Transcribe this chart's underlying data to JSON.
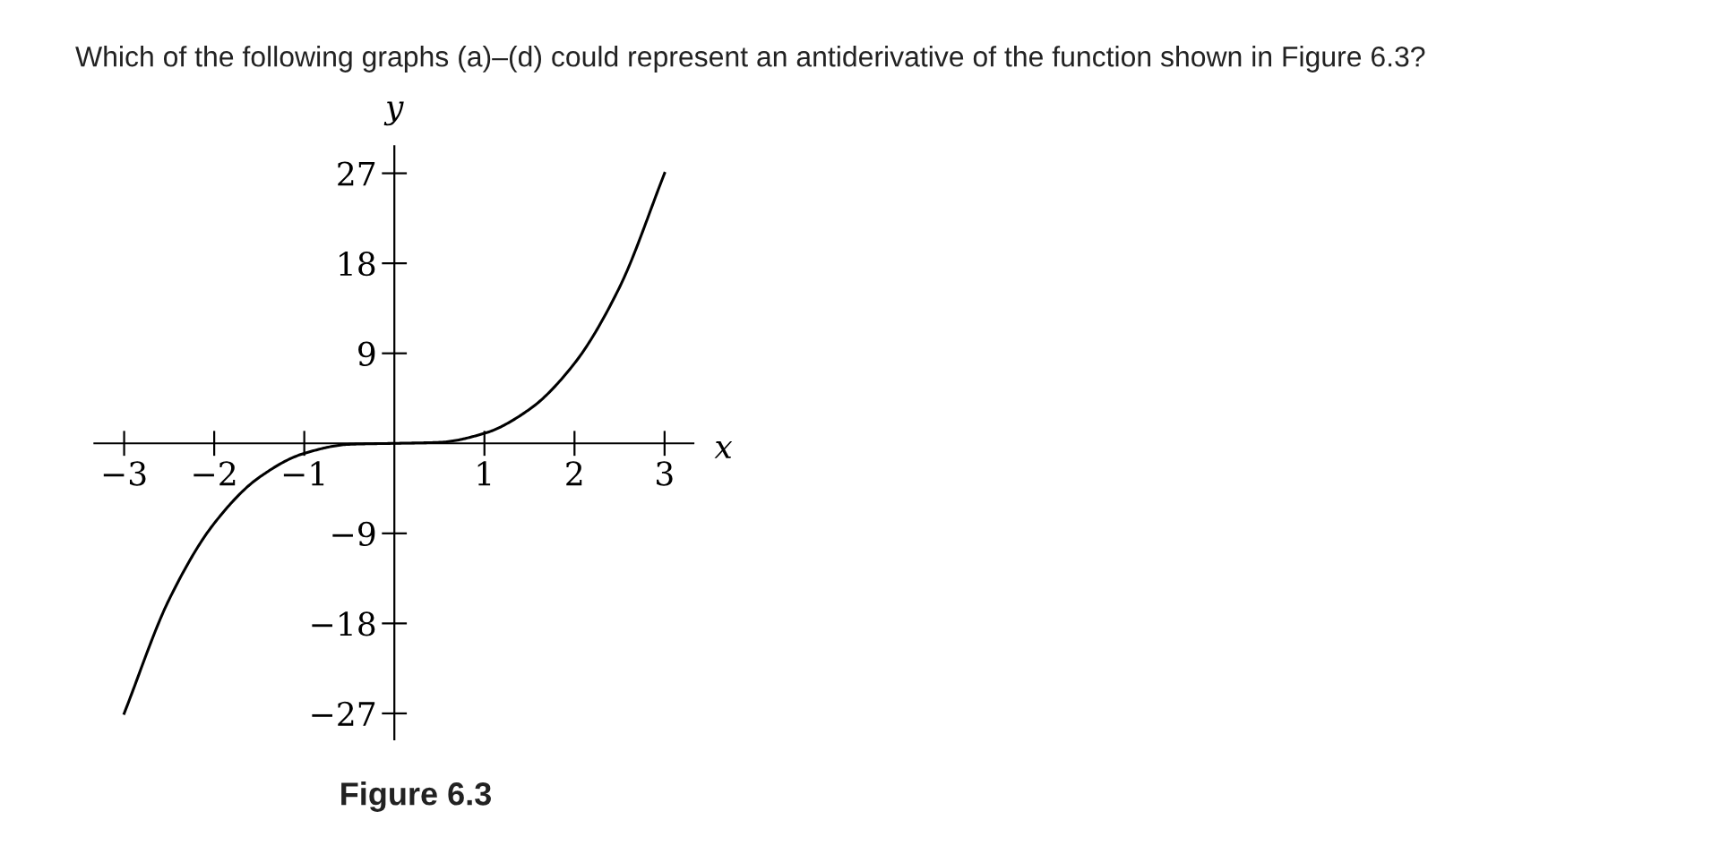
{
  "chart_data": {
    "type": "line",
    "title": "Which of the following graphs (a)–(d) could represent an antiderivative of the function shown in Figure 6.3?",
    "xlabel": "x",
    "ylabel": "y",
    "annotations": [
      "Figure 6.3"
    ],
    "x": [
      -3,
      -2.5,
      -2,
      -1.5,
      -1,
      -0.5,
      0,
      0.5,
      1,
      1.5,
      2,
      2.5,
      3
    ],
    "series": [
      {
        "color": "#000000",
        "values": [
          -27,
          -15.6,
          -8,
          -3.4,
          -1,
          -0.1,
          0,
          0.1,
          1,
          3.4,
          8,
          15.6,
          27
        ]
      }
    ],
    "xlim": [
      -3.33,
      3.32
    ],
    "ylim": [
      -29.6,
      29.7
    ],
    "xticks": [
      -3,
      -2,
      -1,
      1,
      2,
      3
    ],
    "yticks": [
      -27,
      -18,
      -9,
      9,
      18,
      27
    ],
    "grid": false,
    "legend": false,
    "marker": "none",
    "line_style": "solid"
  }
}
